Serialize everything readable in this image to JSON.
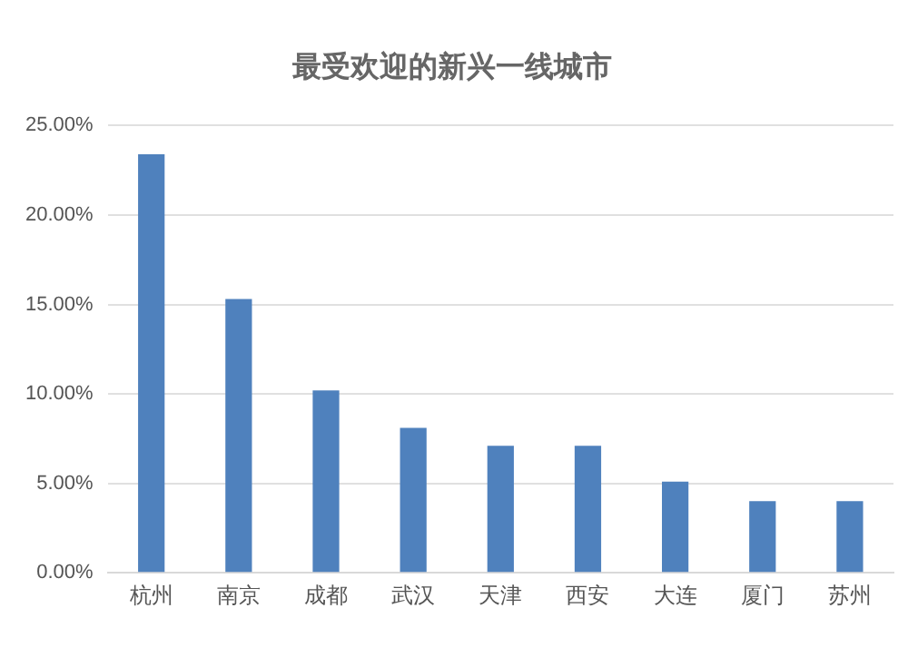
{
  "chart_data": {
    "type": "bar",
    "title": "最受欢迎的新兴一线城市",
    "categories": [
      "杭州",
      "南京",
      "成都",
      "武汉",
      "天津",
      "西安",
      "大连",
      "厦门",
      "苏州"
    ],
    "values": [
      23.4,
      15.3,
      10.2,
      8.1,
      7.1,
      7.1,
      5.1,
      4.0,
      4.0
    ],
    "color": "#4f81bd",
    "ylim": [
      0,
      25
    ],
    "yticks": [
      {
        "value": 0,
        "label": "0.00%"
      },
      {
        "value": 5,
        "label": "5.00%"
      },
      {
        "value": 10,
        "label": "10.00%"
      },
      {
        "value": 15,
        "label": "15.00%"
      },
      {
        "value": 20,
        "label": "20.00%"
      },
      {
        "value": 25,
        "label": "25.00%"
      }
    ],
    "grid": "y"
  }
}
